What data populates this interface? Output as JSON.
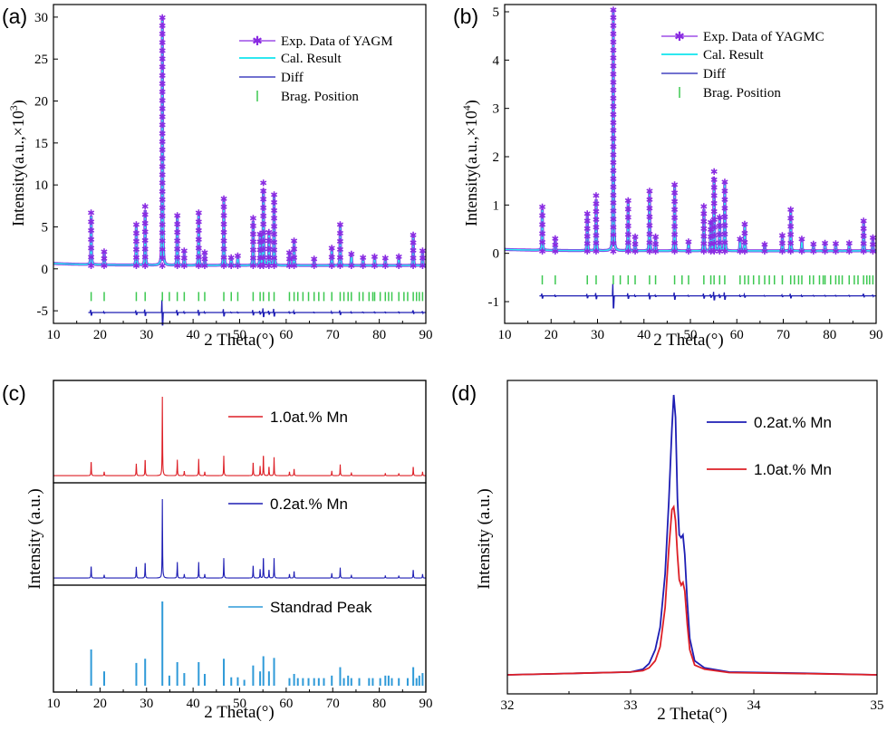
{
  "chart_data": [
    {
      "id": "a",
      "panel_label": "(a)",
      "type": "line",
      "xlabel": "2 Theta(°)",
      "ylabel": "Intensity(a.u.,×10",
      "ylabel_exp": "3",
      "ylabel_close": ")",
      "xlim": [
        10,
        90
      ],
      "ylim": [
        -6.5,
        31.5
      ],
      "xticks": [
        "10",
        "20",
        "30",
        "40",
        "50",
        "60",
        "70",
        "80",
        "90"
      ],
      "yticks": [
        "-5",
        "0",
        "5",
        "10",
        "15",
        "20",
        "25",
        "30"
      ],
      "legend": {
        "position": "top-right",
        "items": [
          "Exp. Data of YAGM",
          "Cal. Result",
          "Diff",
          "Brag. Position"
        ]
      },
      "background": 0.4,
      "diff_baseline": -5.2,
      "bragg_y": -3.3,
      "peaks": [
        [
          18.1,
          6.3
        ],
        [
          20.9,
          1.7
        ],
        [
          27.8,
          4.9
        ],
        [
          29.7,
          7.1
        ],
        [
          33.4,
          29.6
        ],
        [
          36.6,
          6.0
        ],
        [
          38.1,
          1.8
        ],
        [
          41.2,
          6.3
        ],
        [
          42.5,
          1.6
        ],
        [
          46.6,
          8.0
        ],
        [
          48.2,
          1.0
        ],
        [
          49.6,
          1.2
        ],
        [
          52.9,
          5.7
        ],
        [
          54.4,
          3.8
        ],
        [
          55.1,
          9.9
        ],
        [
          56.3,
          4.0
        ],
        [
          57.4,
          8.5
        ],
        [
          60.7,
          1.6
        ],
        [
          61.7,
          3.0
        ],
        [
          66.0,
          0.8
        ],
        [
          69.8,
          2.1
        ],
        [
          71.6,
          4.9
        ],
        [
          74.0,
          1.4
        ],
        [
          76.5,
          1.0
        ],
        [
          79.0,
          1.1
        ],
        [
          81.3,
          0.9
        ],
        [
          84.2,
          1.1
        ],
        [
          87.3,
          3.7
        ],
        [
          89.3,
          1.8
        ]
      ],
      "bragg_positions": [
        18.1,
        20.9,
        27.8,
        29.7,
        33.4,
        34.9,
        36.6,
        38.1,
        41.2,
        42.5,
        46.6,
        48.2,
        49.6,
        52.9,
        54.4,
        55.1,
        56.3,
        57.4,
        60.7,
        61.7,
        62.5,
        63.6,
        64.8,
        66.0,
        67.0,
        68.1,
        69.8,
        71.6,
        72.4,
        73.3,
        74.0,
        75.7,
        76.5,
        77.8,
        78.6,
        79.0,
        80.2,
        81.3,
        82.0,
        82.7,
        84.2,
        85.3,
        86.1,
        87.3,
        88.0,
        88.6,
        89.3
      ]
    },
    {
      "id": "b",
      "panel_label": "(b)",
      "type": "line",
      "xlabel": "2 Theta(°)",
      "ylabel": "Intensity(a.u.,×10",
      "ylabel_exp": "4",
      "ylabel_close": ")",
      "xlim": [
        10,
        90
      ],
      "ylim": [
        -1.45,
        5.15
      ],
      "xticks": [
        "10",
        "20",
        "30",
        "40",
        "50",
        "60",
        "70",
        "80",
        "90"
      ],
      "yticks": [
        "-1",
        "0",
        "1",
        "2",
        "3",
        "4",
        "5"
      ],
      "legend": {
        "position": "top-right",
        "items": [
          "Exp. Data of YAGMC",
          "Cal. Result",
          "Diff",
          "Brag. Position"
        ]
      },
      "background": 0.05,
      "diff_baseline": -0.88,
      "bragg_y": -0.55,
      "peaks": [
        [
          18.1,
          0.92
        ],
        [
          20.9,
          0.26
        ],
        [
          27.8,
          0.78
        ],
        [
          29.7,
          1.15
        ],
        [
          33.4,
          5.0
        ],
        [
          36.6,
          1.05
        ],
        [
          38.1,
          0.3
        ],
        [
          41.2,
          1.25
        ],
        [
          42.5,
          0.3
        ],
        [
          46.6,
          1.38
        ],
        [
          49.6,
          0.2
        ],
        [
          52.9,
          0.93
        ],
        [
          54.4,
          0.6
        ],
        [
          55.1,
          1.65
        ],
        [
          56.3,
          0.7
        ],
        [
          57.4,
          1.43
        ],
        [
          60.7,
          0.25
        ],
        [
          61.7,
          0.56
        ],
        [
          66.0,
          0.14
        ],
        [
          69.8,
          0.33
        ],
        [
          71.6,
          0.86
        ],
        [
          74.0,
          0.25
        ],
        [
          76.5,
          0.15
        ],
        [
          79.0,
          0.17
        ],
        [
          81.3,
          0.16
        ],
        [
          84.2,
          0.17
        ],
        [
          87.3,
          0.63
        ],
        [
          89.3,
          0.28
        ]
      ],
      "bragg_positions": [
        18.1,
        20.9,
        27.8,
        29.7,
        33.4,
        34.9,
        36.6,
        38.1,
        41.2,
        42.5,
        46.6,
        48.2,
        49.6,
        52.9,
        54.4,
        55.1,
        56.3,
        57.4,
        60.7,
        61.7,
        62.5,
        63.6,
        64.8,
        66.0,
        67.0,
        68.1,
        69.8,
        71.6,
        72.4,
        73.3,
        74.0,
        75.7,
        76.5,
        77.8,
        78.6,
        79.0,
        80.2,
        81.3,
        82.0,
        82.7,
        84.2,
        85.3,
        86.1,
        87.3,
        88.0,
        88.6,
        89.3
      ]
    },
    {
      "id": "c",
      "panel_label": "(c)",
      "type": "line",
      "xlabel": "2 Theta(°)",
      "ylabel": "Intensity (a.u.)",
      "xlim": [
        10,
        90
      ],
      "xticks": [
        "10",
        "20",
        "30",
        "40",
        "50",
        "60",
        "70",
        "80",
        "90"
      ],
      "series": [
        {
          "name": "1.0at.% Mn",
          "color": "#dd1f26",
          "peaks": [
            [
              18.1,
              0.19
            ],
            [
              20.9,
              0.05
            ],
            [
              27.8,
              0.15
            ],
            [
              29.7,
              0.22
            ],
            [
              33.4,
              1.0
            ],
            [
              36.6,
              0.2
            ],
            [
              38.1,
              0.06
            ],
            [
              41.2,
              0.21
            ],
            [
              42.5,
              0.05
            ],
            [
              46.6,
              0.25
            ],
            [
              52.9,
              0.18
            ],
            [
              54.4,
              0.12
            ],
            [
              55.1,
              0.28
            ],
            [
              56.3,
              0.12
            ],
            [
              57.4,
              0.23
            ],
            [
              60.7,
              0.05
            ],
            [
              61.7,
              0.09
            ],
            [
              69.8,
              0.06
            ],
            [
              71.6,
              0.14
            ],
            [
              74.0,
              0.04
            ],
            [
              81.3,
              0.03
            ],
            [
              84.2,
              0.03
            ],
            [
              87.3,
              0.12
            ],
            [
              89.3,
              0.05
            ]
          ]
        },
        {
          "name": "0.2at.% Mn",
          "color": "#1e1eb4",
          "peaks": [
            [
              18.1,
              0.16
            ],
            [
              20.9,
              0.04
            ],
            [
              27.8,
              0.14
            ],
            [
              29.7,
              0.21
            ],
            [
              33.4,
              1.0
            ],
            [
              36.6,
              0.2
            ],
            [
              38.1,
              0.05
            ],
            [
              41.2,
              0.2
            ],
            [
              42.5,
              0.05
            ],
            [
              46.6,
              0.25
            ],
            [
              52.9,
              0.17
            ],
            [
              54.4,
              0.11
            ],
            [
              55.1,
              0.28
            ],
            [
              56.3,
              0.11
            ],
            [
              57.4,
              0.25
            ],
            [
              60.7,
              0.05
            ],
            [
              61.7,
              0.09
            ],
            [
              69.8,
              0.06
            ],
            [
              71.6,
              0.13
            ],
            [
              74.0,
              0.04
            ],
            [
              81.3,
              0.03
            ],
            [
              84.2,
              0.03
            ],
            [
              87.3,
              0.11
            ],
            [
              89.3,
              0.05
            ]
          ]
        },
        {
          "name": "Standrad Peak",
          "color": "#2f9ad8",
          "peaks": [
            [
              18.1,
              0.43
            ],
            [
              20.9,
              0.17
            ],
            [
              27.8,
              0.27
            ],
            [
              29.7,
              0.32
            ],
            [
              33.4,
              1.0
            ],
            [
              34.9,
              0.12
            ],
            [
              36.6,
              0.28
            ],
            [
              38.1,
              0.15
            ],
            [
              41.2,
              0.28
            ],
            [
              42.5,
              0.14
            ],
            [
              46.6,
              0.32
            ],
            [
              48.2,
              0.1
            ],
            [
              49.6,
              0.1
            ],
            [
              51.0,
              0.07
            ],
            [
              52.9,
              0.24
            ],
            [
              54.4,
              0.17
            ],
            [
              55.1,
              0.35
            ],
            [
              56.3,
              0.17
            ],
            [
              57.4,
              0.33
            ],
            [
              60.7,
              0.09
            ],
            [
              61.7,
              0.14
            ],
            [
              62.5,
              0.09
            ],
            [
              63.6,
              0.09
            ],
            [
              64.8,
              0.09
            ],
            [
              66.0,
              0.09
            ],
            [
              67.0,
              0.09
            ],
            [
              68.1,
              0.09
            ],
            [
              69.8,
              0.12
            ],
            [
              71.6,
              0.22
            ],
            [
              72.4,
              0.09
            ],
            [
              73.3,
              0.12
            ],
            [
              74.0,
              0.09
            ],
            [
              75.7,
              0.09
            ],
            [
              77.8,
              0.09
            ],
            [
              78.6,
              0.09
            ],
            [
              80.2,
              0.09
            ],
            [
              81.3,
              0.12
            ],
            [
              82.0,
              0.12
            ],
            [
              82.7,
              0.09
            ],
            [
              84.2,
              0.09
            ],
            [
              86.1,
              0.09
            ],
            [
              87.3,
              0.22
            ],
            [
              88.0,
              0.09
            ],
            [
              88.6,
              0.12
            ],
            [
              89.3,
              0.15
            ]
          ]
        }
      ]
    },
    {
      "id": "d",
      "panel_label": "(d)",
      "type": "line",
      "xlabel": "2 Theta(°)",
      "ylabel": "Intensity (a.u.)",
      "xlim": [
        32,
        35
      ],
      "ylim": [
        0,
        1.05
      ],
      "xticks": [
        "32",
        "33",
        "34",
        "35"
      ],
      "legend": {
        "position": "top-right"
      },
      "series": [
        {
          "name": "0.2at.% Mn",
          "color": "#1e1eb4",
          "points": [
            [
              32.0,
              0.0
            ],
            [
              32.5,
              0.005
            ],
            [
              33.0,
              0.01
            ],
            [
              33.1,
              0.02
            ],
            [
              33.15,
              0.04
            ],
            [
              33.2,
              0.09
            ],
            [
              33.24,
              0.17
            ],
            [
              33.28,
              0.36
            ],
            [
              33.31,
              0.62
            ],
            [
              33.335,
              0.88
            ],
            [
              33.35,
              1.0
            ],
            [
              33.365,
              0.92
            ],
            [
              33.38,
              0.63
            ],
            [
              33.395,
              0.5
            ],
            [
              33.41,
              0.49
            ],
            [
              33.425,
              0.5
            ],
            [
              33.44,
              0.43
            ],
            [
              33.46,
              0.26
            ],
            [
              33.48,
              0.13
            ],
            [
              33.52,
              0.05
            ],
            [
              33.6,
              0.025
            ],
            [
              33.8,
              0.01
            ],
            [
              34.5,
              0.005
            ],
            [
              35.0,
              0.0
            ]
          ]
        },
        {
          "name": "1.0at.% Mn",
          "color": "#dd1f26",
          "points": [
            [
              32.0,
              0.0
            ],
            [
              32.5,
              0.005
            ],
            [
              33.0,
              0.01
            ],
            [
              33.1,
              0.015
            ],
            [
              33.15,
              0.025
            ],
            [
              33.2,
              0.05
            ],
            [
              33.24,
              0.1
            ],
            [
              33.28,
              0.24
            ],
            [
              33.31,
              0.45
            ],
            [
              33.335,
              0.59
            ],
            [
              33.35,
              0.6
            ],
            [
              33.365,
              0.55
            ],
            [
              33.38,
              0.43
            ],
            [
              33.395,
              0.34
            ],
            [
              33.41,
              0.32
            ],
            [
              33.425,
              0.33
            ],
            [
              33.44,
              0.3
            ],
            [
              33.46,
              0.18
            ],
            [
              33.48,
              0.09
            ],
            [
              33.52,
              0.035
            ],
            [
              33.6,
              0.02
            ],
            [
              33.8,
              0.008
            ],
            [
              34.5,
              0.004
            ],
            [
              35.0,
              0.0
            ]
          ]
        }
      ]
    }
  ],
  "colors": {
    "exp_marker": "#8a2be2",
    "cal_line": "#2ee8f0",
    "diff_line": "#1e1eb4",
    "bragg_tick": "#3cc850"
  }
}
